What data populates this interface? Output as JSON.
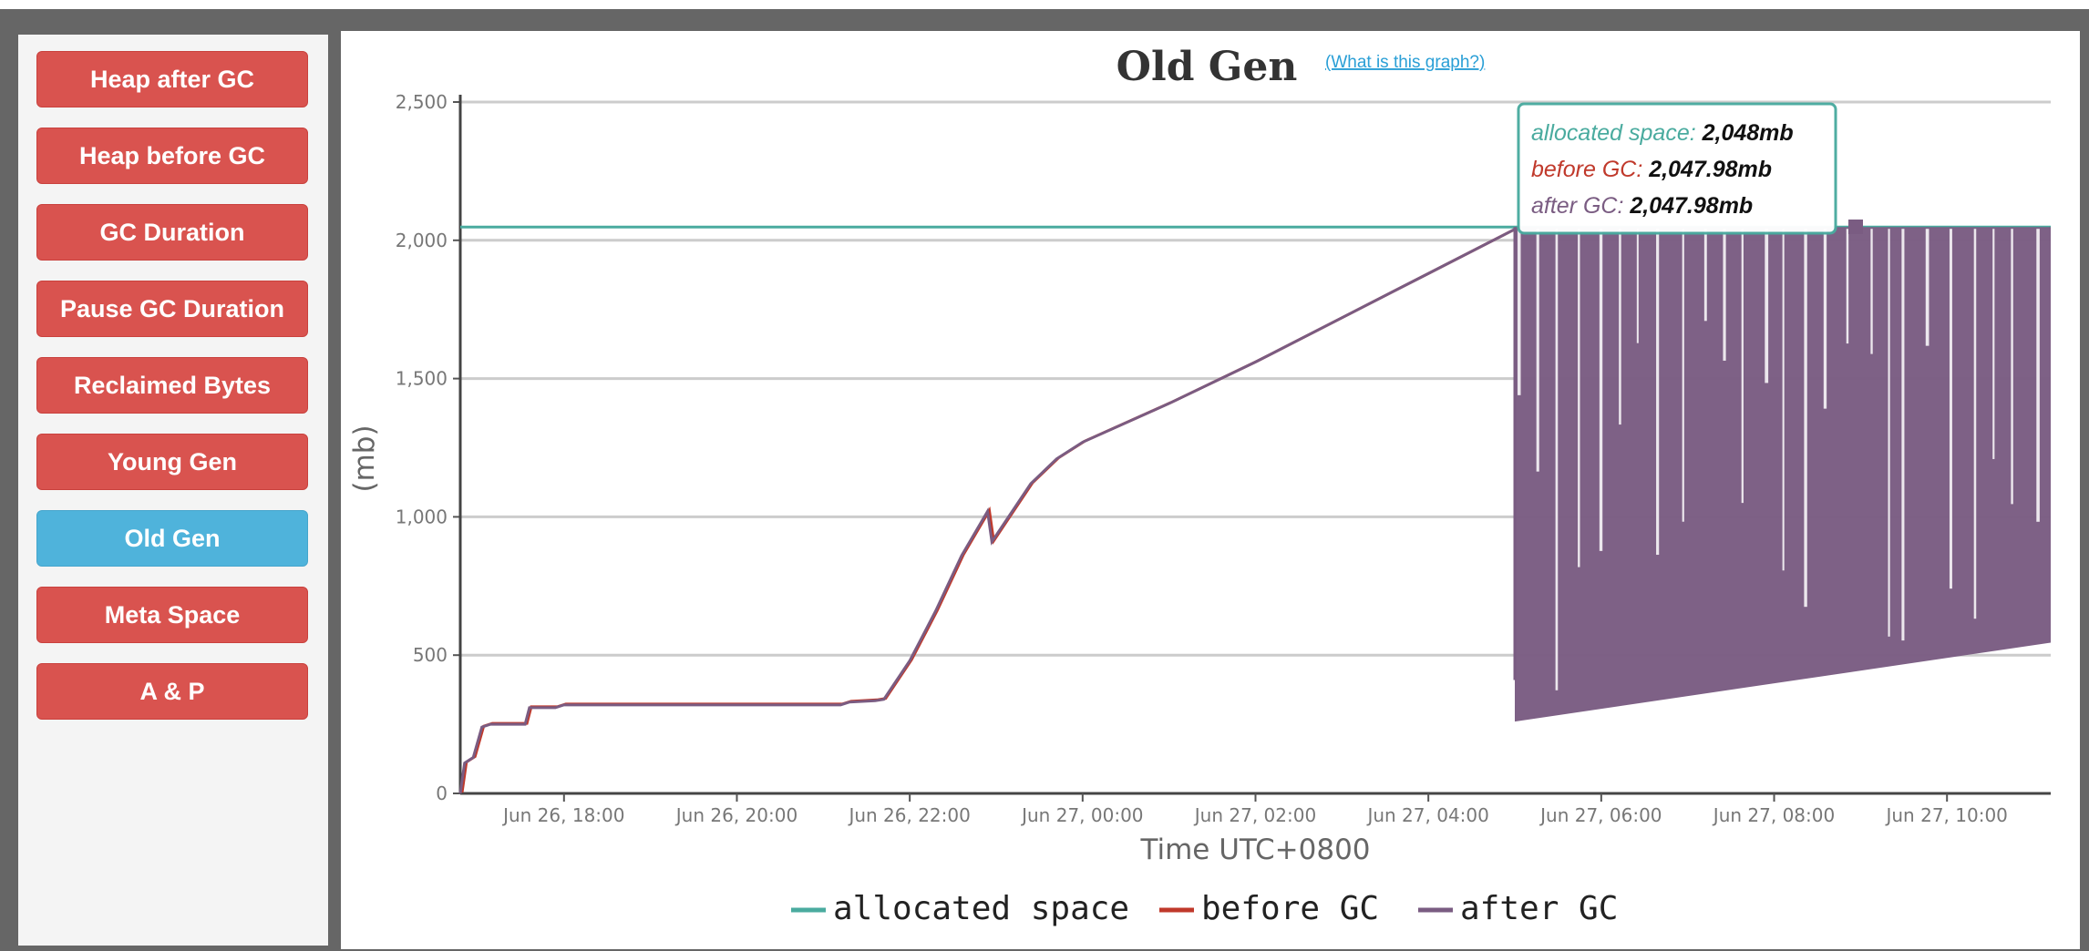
{
  "sidebar": {
    "items": [
      {
        "label": "Heap after GC",
        "active": false
      },
      {
        "label": "Heap before GC",
        "active": false
      },
      {
        "label": "GC Duration",
        "active": false
      },
      {
        "label": "Pause GC Duration",
        "active": false
      },
      {
        "label": "Reclaimed Bytes",
        "active": false
      },
      {
        "label": "Young Gen",
        "active": false
      },
      {
        "label": "Old Gen",
        "active": true
      },
      {
        "label": "Meta Space",
        "active": false
      },
      {
        "label": "A & P",
        "active": false
      }
    ]
  },
  "help_link": "(What is this graph?)",
  "tooltip": {
    "rows": [
      {
        "label": "allocated space:",
        "value": "2,048mb",
        "color": "#4aab9f"
      },
      {
        "label": "before GC:",
        "value": "2,047.98mb",
        "color": "#c0392b"
      },
      {
        "label": "after GC:",
        "value": "2,047.98mb",
        "color": "#7a5c82"
      }
    ]
  },
  "chart_data": {
    "type": "line",
    "title": "Old Gen",
    "xlabel": "Time UTC+0800",
    "ylabel": "(mb)",
    "ylim": [
      0,
      2500
    ],
    "xlim_hours": [
      16.8,
      35.2
    ],
    "yticks": [
      "0",
      "500",
      "1,000",
      "1,500",
      "2,000",
      "2,500"
    ],
    "ytick_values": [
      0,
      500,
      1000,
      1500,
      2000,
      2500
    ],
    "xticks": [
      "Jun 26, 18:00",
      "Jun 26, 20:00",
      "Jun 26, 22:00",
      "Jun 27, 00:00",
      "Jun 27, 02:00",
      "Jun 27, 04:00",
      "Jun 27, 06:00",
      "Jun 27, 08:00",
      "Jun 27, 10:00"
    ],
    "xtick_values": [
      18,
      20,
      22,
      24,
      26,
      28,
      30,
      32,
      34
    ],
    "grid": true,
    "legend_position": "bottom",
    "colors": {
      "allocated": "#4aab9f",
      "before": "#c0392b",
      "after": "#7a5c82"
    },
    "series": [
      {
        "name": "allocated space",
        "x": [
          16.8,
          35.2
        ],
        "y": [
          2048,
          2048
        ]
      },
      {
        "name": "before GC",
        "x": [
          16.8,
          16.85,
          16.95,
          17.05,
          17.15,
          17.4,
          17.55,
          17.6,
          17.9,
          18.0,
          21.2,
          21.3,
          21.6,
          21.7,
          22.0,
          22.3,
          22.6,
          22.9,
          22.95,
          23.1,
          23.4,
          23.7,
          24.0,
          25.0,
          26.0,
          27.0,
          28.0,
          29.0
        ],
        "y": [
          0,
          110,
          130,
          240,
          250,
          250,
          250,
          310,
          310,
          320,
          320,
          330,
          335,
          340,
          480,
          660,
          860,
          1020,
          910,
          980,
          1120,
          1210,
          1270,
          1410,
          1560,
          1720,
          1880,
          2040
        ]
      },
      {
        "name": "after GC",
        "x": [
          16.8,
          16.85,
          16.95,
          17.05,
          17.15,
          17.4,
          17.55,
          17.6,
          17.9,
          18.0,
          21.2,
          21.3,
          21.6,
          21.7,
          22.0,
          22.3,
          22.6,
          22.9,
          22.95,
          23.1,
          23.4,
          23.7,
          24.0,
          25.0,
          26.0,
          27.0,
          28.0,
          29.0
        ],
        "y": [
          0,
          110,
          130,
          240,
          250,
          250,
          250,
          310,
          310,
          320,
          320,
          330,
          335,
          340,
          480,
          660,
          860,
          1020,
          910,
          980,
          1120,
          1210,
          1270,
          1410,
          1560,
          1720,
          1880,
          2040
        ]
      }
    ],
    "gc_oscillation": {
      "x_start": 29.0,
      "x_end": 35.2,
      "high": 2048,
      "low_start": 260,
      "low_end": 545
    }
  },
  "legend": {
    "items": [
      {
        "label": "allocated space",
        "color": "#4aab9f"
      },
      {
        "label": "before GC",
        "color": "#c0392b"
      },
      {
        "label": "after GC",
        "color": "#7a5c82"
      }
    ]
  }
}
